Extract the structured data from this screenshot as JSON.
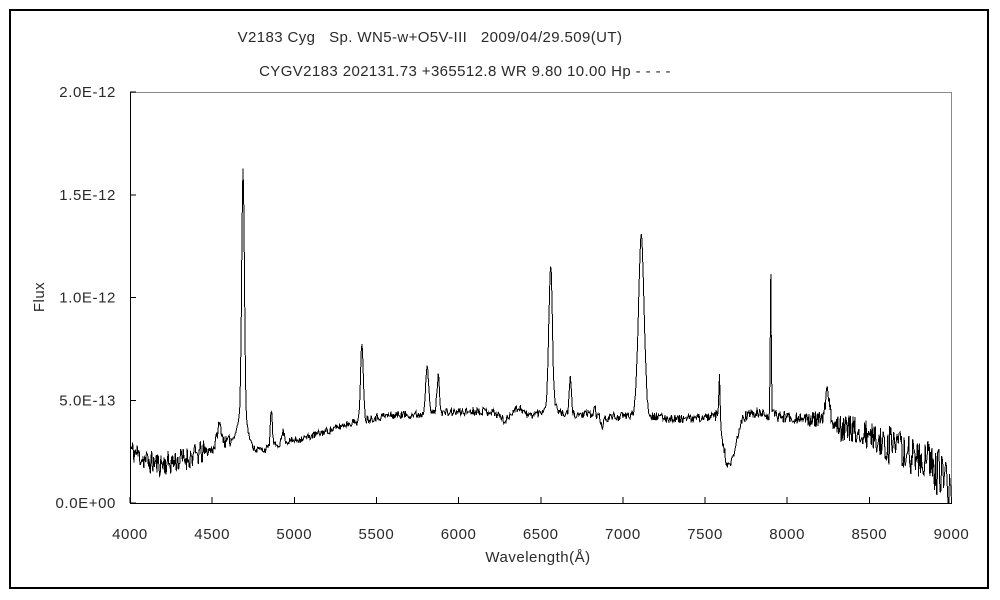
{
  "page": {
    "background": "#ffffff",
    "border_color": "#000000"
  },
  "chart_data": {
    "type": "line",
    "title": "V2183 Cyg   Sp. WN5-w+O5V-III   2009/04/29.509(UT)",
    "subtitle": "CYGV2183 202131.73 +365512.8 WR 9.80 10.00 Hp - - - -",
    "xlabel": "Wavelength(Å)",
    "ylabel": "Flux",
    "xlim": [
      4000,
      9000
    ],
    "ylim": [
      0,
      2e-12
    ],
    "ylim_e13": [
      0,
      20
    ],
    "grid": false,
    "legend": "none",
    "line_color": "#000000",
    "frame": {
      "axis_color": "#000000",
      "far_side_color": "#8a8a8a"
    },
    "x_ticks": [
      {
        "value": 4000,
        "label": "4000"
      },
      {
        "value": 4500,
        "label": "4500"
      },
      {
        "value": 5000,
        "label": "5000"
      },
      {
        "value": 5500,
        "label": "5500"
      },
      {
        "value": 6000,
        "label": "6000"
      },
      {
        "value": 6500,
        "label": "6500"
      },
      {
        "value": 7000,
        "label": "7000"
      },
      {
        "value": 7500,
        "label": "7500"
      },
      {
        "value": 8000,
        "label": "8000"
      },
      {
        "value": 8500,
        "label": "8500"
      },
      {
        "value": 9000,
        "label": "9000"
      }
    ],
    "y_ticks": [
      {
        "e13": 0,
        "label": "0.0E+00"
      },
      {
        "e13": 5,
        "label": "5.0E-13"
      },
      {
        "e13": 10,
        "label": "1.0E-12"
      },
      {
        "e13": 15,
        "label": "1.5E-12"
      },
      {
        "e13": 20,
        "label": "2.0E-12"
      }
    ],
    "series": [
      {
        "name": "flux-spectrum",
        "sample_step_angstrom": 4,
        "noise_seed": 11,
        "continuum_e13": [
          [
            4000,
            2.6
          ],
          [
            4050,
            2.35
          ],
          [
            4110,
            2.0
          ],
          [
            4170,
            1.9
          ],
          [
            4240,
            1.95
          ],
          [
            4310,
            2.1
          ],
          [
            4390,
            2.3
          ],
          [
            4460,
            2.5
          ],
          [
            4520,
            2.7
          ],
          [
            4570,
            2.9
          ],
          [
            4620,
            3.05
          ],
          [
            4660,
            3.25
          ],
          [
            4700,
            3.1
          ],
          [
            4730,
            2.75
          ],
          [
            4770,
            2.6
          ],
          [
            4820,
            2.6
          ],
          [
            4880,
            2.8
          ],
          [
            4940,
            2.95
          ],
          [
            5000,
            3.05
          ],
          [
            5080,
            3.2
          ],
          [
            5160,
            3.4
          ],
          [
            5240,
            3.6
          ],
          [
            5320,
            3.85
          ],
          [
            5400,
            4.0
          ],
          [
            5480,
            4.15
          ],
          [
            5560,
            4.25
          ],
          [
            5650,
            4.3
          ],
          [
            5750,
            4.3
          ],
          [
            5850,
            4.4
          ],
          [
            5950,
            4.4
          ],
          [
            6050,
            4.45
          ],
          [
            6130,
            4.5
          ],
          [
            6200,
            4.45
          ],
          [
            6250,
            4.25
          ],
          [
            6285,
            3.95
          ],
          [
            6330,
            4.5
          ],
          [
            6375,
            4.65
          ],
          [
            6420,
            4.25
          ],
          [
            6470,
            4.35
          ],
          [
            6530,
            4.4
          ],
          [
            6600,
            4.4
          ],
          [
            6660,
            4.3
          ],
          [
            6730,
            4.3
          ],
          [
            6800,
            4.3
          ],
          [
            6850,
            4.25
          ],
          [
            6885,
            4.05
          ],
          [
            6920,
            4.2
          ],
          [
            6970,
            4.2
          ],
          [
            7030,
            4.25
          ],
          [
            7090,
            4.3
          ],
          [
            7160,
            4.25
          ],
          [
            7240,
            4.15
          ],
          [
            7320,
            4.1
          ],
          [
            7400,
            4.1
          ],
          [
            7480,
            4.15
          ],
          [
            7555,
            4.2
          ],
          [
            7585,
            4.3
          ],
          [
            7608,
            2.9
          ],
          [
            7630,
            2.0
          ],
          [
            7652,
            1.7
          ],
          [
            7678,
            2.4
          ],
          [
            7700,
            3.3
          ],
          [
            7728,
            4.1
          ],
          [
            7765,
            4.3
          ],
          [
            7820,
            4.35
          ],
          [
            7880,
            4.3
          ],
          [
            7940,
            4.25
          ],
          [
            8000,
            4.2
          ],
          [
            8060,
            4.15
          ],
          [
            8120,
            4.05
          ],
          [
            8180,
            4.0
          ],
          [
            8250,
            4.0
          ],
          [
            8310,
            3.85
          ],
          [
            8370,
            3.6
          ],
          [
            8430,
            3.4
          ],
          [
            8490,
            3.25
          ],
          [
            8550,
            3.05
          ],
          [
            8610,
            2.85
          ],
          [
            8670,
            2.65
          ],
          [
            8730,
            2.45
          ],
          [
            8790,
            2.2
          ],
          [
            8845,
            1.95
          ],
          [
            8890,
            1.7
          ],
          [
            8930,
            1.4
          ],
          [
            8960,
            1.1
          ],
          [
            8985,
            0.75
          ],
          [
            9000,
            0.45
          ]
        ],
        "features_center_sigma_height_e13": [
          [
            4544,
            14,
            1.0
          ],
          [
            4688,
            8,
            11.8
          ],
          [
            4688,
            26,
            1.3
          ],
          [
            4860,
            6,
            1.8
          ],
          [
            4932,
            8,
            0.55
          ],
          [
            5412,
            8,
            3.85
          ],
          [
            5808,
            9,
            2.4
          ],
          [
            5876,
            8,
            1.75
          ],
          [
            6560,
            10,
            6.5
          ],
          [
            6560,
            24,
            0.8
          ],
          [
            6680,
            7,
            1.7
          ],
          [
            6828,
            5,
            0.4
          ],
          [
            6872,
            6,
            -0.5
          ],
          [
            7112,
            17,
            8.75
          ],
          [
            7588,
            3.5,
            2.0
          ],
          [
            7900,
            3,
            7.0
          ],
          [
            8244,
            13,
            1.3
          ]
        ],
        "noise_bands_from_to_amp_e13": [
          [
            4000,
            4450,
            0.6
          ],
          [
            4450,
            4620,
            0.3
          ],
          [
            4620,
            4745,
            0.12
          ],
          [
            4745,
            5350,
            0.18
          ],
          [
            5350,
            6500,
            0.2
          ],
          [
            6500,
            7550,
            0.2
          ],
          [
            7550,
            7725,
            0.25
          ],
          [
            7725,
            8150,
            0.3
          ],
          [
            8150,
            8320,
            0.45
          ],
          [
            8320,
            8600,
            0.75
          ],
          [
            8600,
            8850,
            0.95
          ],
          [
            8850,
            9001,
            1.25
          ]
        ]
      }
    ]
  }
}
